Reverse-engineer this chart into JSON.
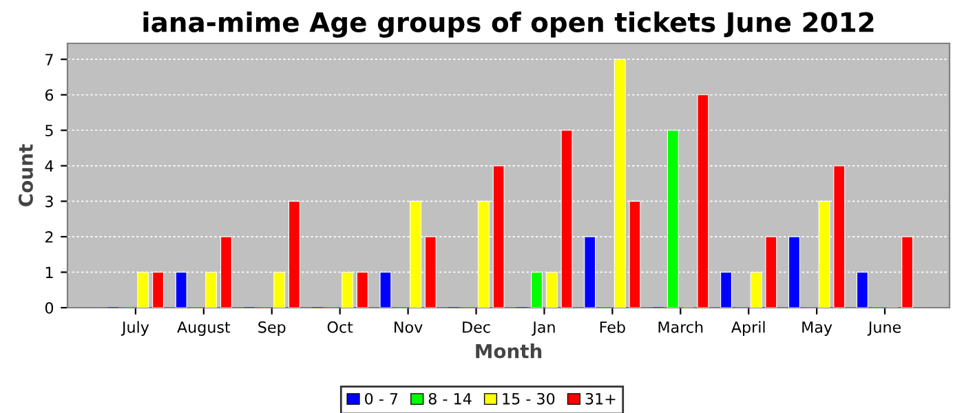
{
  "chart_data": {
    "type": "bar",
    "title": "iana-mime Age groups of open tickets June 2012",
    "xlabel": "Month",
    "ylabel": "Count",
    "categories": [
      "July",
      "August",
      "Sep",
      "Oct",
      "Nov",
      "Dec",
      "Jan",
      "Feb",
      "March",
      "April",
      "May",
      "June"
    ],
    "series": [
      {
        "name": "0 - 7",
        "color": "#0000ff",
        "values": [
          0,
          1,
          0,
          0,
          1,
          0,
          0,
          2,
          0,
          1,
          2,
          1
        ]
      },
      {
        "name": "8 - 14",
        "color": "#00ff00",
        "values": [
          0,
          0,
          0,
          0,
          0,
          0,
          1,
          0,
          5,
          0,
          0,
          0
        ]
      },
      {
        "name": "15 - 30",
        "color": "#ffff00",
        "values": [
          1,
          1,
          1,
          1,
          3,
          3,
          1,
          7,
          0,
          1,
          3,
          0
        ]
      },
      {
        "name": "31+",
        "color": "#ff0000",
        "values": [
          1,
          2,
          3,
          1,
          2,
          4,
          5,
          3,
          6,
          2,
          4,
          2
        ]
      }
    ],
    "ylim": [
      0,
      7.45
    ],
    "yticks": [
      0,
      1,
      2,
      3,
      4,
      5,
      6,
      7
    ],
    "grid": "y",
    "legend": "bottom"
  }
}
